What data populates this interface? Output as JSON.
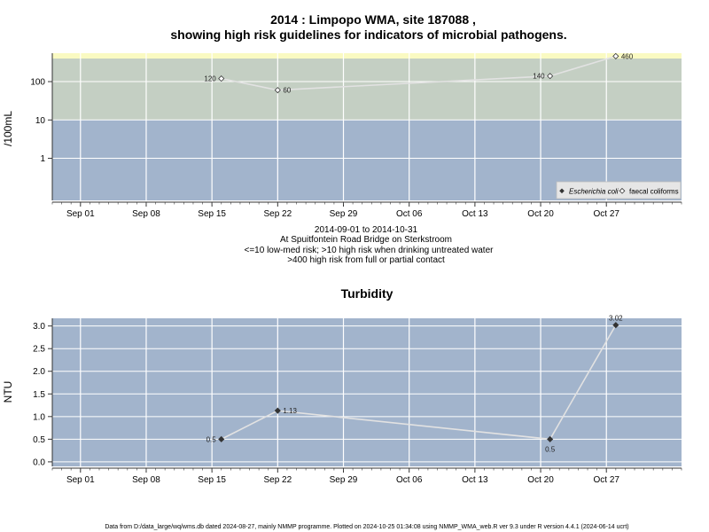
{
  "chart_data": [
    {
      "type": "line",
      "title_line1": "2014 : Limpopo WMA, site 187088 ,",
      "title_line2": "showing high risk guidelines for indicators of microbial pathogens.",
      "ylabel": "/100mL",
      "y_scale": "log",
      "ylim": [
        0.08,
        400
      ],
      "y_ticks": [
        1,
        10,
        100
      ],
      "y_tick_labels": [
        "1",
        "10",
        "100"
      ],
      "x_range": [
        "2014-08-29",
        "2014-11-04"
      ],
      "x_ticks": [
        "2014-09-01",
        "2014-09-08",
        "2014-09-15",
        "2014-09-22",
        "2014-09-29",
        "2014-10-06",
        "2014-10-13",
        "2014-10-20",
        "2014-10-27"
      ],
      "x_tick_labels": [
        "Sep 01",
        "Sep 08",
        "Sep 15",
        "Sep 22",
        "Sep 29",
        "Oct 06",
        "Oct 13",
        "Oct 20",
        "Oct 27"
      ],
      "bands": [
        {
          "from": 0.08,
          "to": 10,
          "color": "#a2b4cc"
        },
        {
          "from": 10,
          "to": 400,
          "color": "#c4cfc3"
        },
        {
          "from": 400,
          "to": 460,
          "color": "#fafac2"
        }
      ],
      "grid": true,
      "series": [
        {
          "name": "faecal coliforms",
          "marker": "open-diamond",
          "points": [
            {
              "x": "2014-09-16",
              "y": 120,
              "label": "120",
              "label_side": "left"
            },
            {
              "x": "2014-09-22",
              "y": 60,
              "label": "60",
              "label_side": "right"
            },
            {
              "x": "2014-10-21",
              "y": 140,
              "label": "140",
              "label_side": "left"
            },
            {
              "x": "2014-10-28",
              "y": 460,
              "label": "460",
              "label_side": "right"
            }
          ]
        }
      ],
      "legend": {
        "position": "bottom-right",
        "entries": [
          {
            "label": "Escherichia coli",
            "marker": "filled-diamond",
            "italic": true
          },
          {
            "label": "faecal coliforms",
            "marker": "open-diamond",
            "italic": false
          }
        ]
      },
      "caption": [
        "2014-09-01 to 2014-10-31",
        "At Spuitfontein Road Bridge on Sterkstroom",
        "<=10 low-med risk; >10 high risk when drinking untreated water",
        ">400 high risk from full or partial contact"
      ]
    },
    {
      "type": "line",
      "title": "Turbidity",
      "ylabel": "NTU",
      "y_scale": "linear",
      "ylim": [
        -0.1,
        3.15
      ],
      "y_ticks": [
        0.0,
        0.5,
        1.0,
        1.5,
        2.0,
        2.5,
        3.0
      ],
      "y_tick_labels": [
        "0.0",
        "0.5",
        "1.0",
        "1.5",
        "2.0",
        "2.5",
        "3.0"
      ],
      "x_range": [
        "2014-08-29",
        "2014-11-04"
      ],
      "x_ticks": [
        "2014-09-01",
        "2014-09-08",
        "2014-09-15",
        "2014-09-22",
        "2014-09-29",
        "2014-10-06",
        "2014-10-13",
        "2014-10-20",
        "2014-10-27"
      ],
      "x_tick_labels": [
        "Sep 01",
        "Sep 08",
        "Sep 15",
        "Sep 22",
        "Sep 29",
        "Oct 06",
        "Oct 13",
        "Oct 20",
        "Oct 27"
      ],
      "background": "#a2b4cc",
      "grid": true,
      "series": [
        {
          "marker": "filled-diamond",
          "points": [
            {
              "x": "2014-09-16",
              "y": 0.5,
              "label": "0.5",
              "label_side": "left"
            },
            {
              "x": "2014-09-22",
              "y": 1.13,
              "label": "1.13",
              "label_side": "right"
            },
            {
              "x": "2014-10-21",
              "y": 0.5,
              "label": "0.5",
              "label_side": "below"
            },
            {
              "x": "2014-10-28",
              "y": 3.02,
              "label": "3.02",
              "label_side": "above"
            }
          ]
        }
      ]
    }
  ],
  "footer": "Data from D:/data_large/wq/wms.db dated 2024-08-27, mainly NMMP programme. Plotted on 2024-10-25 01:34:08 using NMMP_WMA_web.R ver 9.3 under R version 4.4.1 (2024-06-14 ucrt)"
}
